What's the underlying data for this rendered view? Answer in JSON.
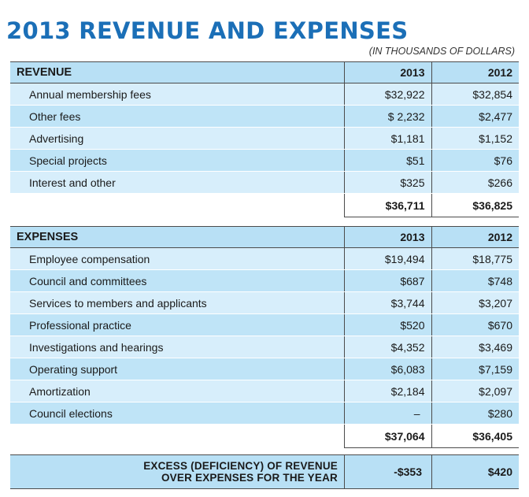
{
  "title": "2013 REVENUE AND EXPENSES",
  "subtitle": "(IN THOUSANDS OF DOLLARS)",
  "revenue": {
    "heading": "REVENUE",
    "col1": "2013",
    "col2": "2012",
    "rows": [
      {
        "label": "Annual membership fees",
        "v2013": "$32,922",
        "v2012": "$32,854"
      },
      {
        "label": "Other fees",
        "v2013": "$ 2,232",
        "v2012": "$2,477"
      },
      {
        "label": "Advertising",
        "v2013": "$1,181",
        "v2012": "$1,152"
      },
      {
        "label": "Special projects",
        "v2013": "$51",
        "v2012": "$76"
      },
      {
        "label": "Interest and other",
        "v2013": "$325",
        "v2012": "$266"
      }
    ],
    "total2013": "$36,711",
    "total2012": "$36,825"
  },
  "expenses": {
    "heading": "EXPENSES",
    "col1": "2013",
    "col2": "2012",
    "rows": [
      {
        "label": "Employee compensation",
        "v2013": "$19,494",
        "v2012": "$18,775"
      },
      {
        "label": "Council and committees",
        "v2013": "$687",
        "v2012": "$748"
      },
      {
        "label": "Services to members and applicants",
        "v2013": "$3,744",
        "v2012": "$3,207"
      },
      {
        "label": "Professional practice",
        "v2013": "$520",
        "v2012": "$670"
      },
      {
        "label": "Investigations and hearings",
        "v2013": "$4,352",
        "v2012": "$3,469"
      },
      {
        "label": "Operating support",
        "v2013": "$6,083",
        "v2012": "$7,159"
      },
      {
        "label": "Amortization",
        "v2013": "$2,184",
        "v2012": "$2,097"
      },
      {
        "label": "Council elections",
        "v2013": "–",
        "v2012": "$280"
      }
    ],
    "total2013": "$37,064",
    "total2012": "$36,405"
  },
  "excess": {
    "line1": "EXCESS (DEFICIENCY) OF REVENUE",
    "line2": "OVER EXPENSES FOR THE YEAR",
    "v2013": "-$353",
    "v2012": "$420"
  }
}
